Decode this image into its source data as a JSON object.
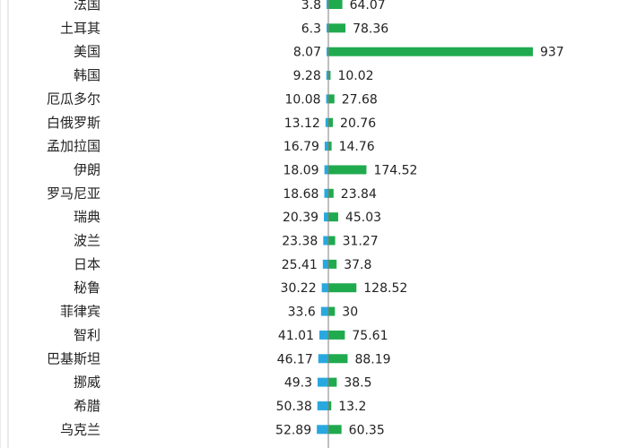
{
  "chart_data": {
    "type": "bar",
    "orientation": "horizontal-diverging",
    "categories": [
      "法国",
      "土耳其",
      "美国",
      "韩国",
      "厄瓜多尔",
      "白俄罗斯",
      "孟加拉国",
      "伊朗",
      "罗马尼亚",
      "瑞典",
      "波兰",
      "日本",
      "秘鲁",
      "菲律宾",
      "智利",
      "巴基斯坦",
      "挪威",
      "希腊",
      "乌克兰"
    ],
    "series": [
      {
        "values": [
          3.8,
          6.3,
          8.07,
          9.28,
          10.08,
          13.12,
          16.79,
          18.09,
          18.68,
          20.39,
          23.38,
          25.41,
          30.22,
          33.6,
          41.01,
          46.17,
          49.3,
          50.38,
          52.89
        ],
        "direction": "left"
      },
      {
        "values": [
          64.07,
          78.36,
          937,
          10.02,
          27.68,
          20.76,
          14.76,
          174.52,
          23.84,
          45.03,
          31.27,
          37.8,
          128.52,
          30,
          75.61,
          88.19,
          38.5,
          13.2,
          60.35
        ],
        "direction": "right"
      }
    ],
    "colors": {
      "left": "#29a8e0",
      "right": "#1faa4e",
      "axis": "#7f7f7f"
    },
    "grid": false,
    "legend": "none"
  }
}
